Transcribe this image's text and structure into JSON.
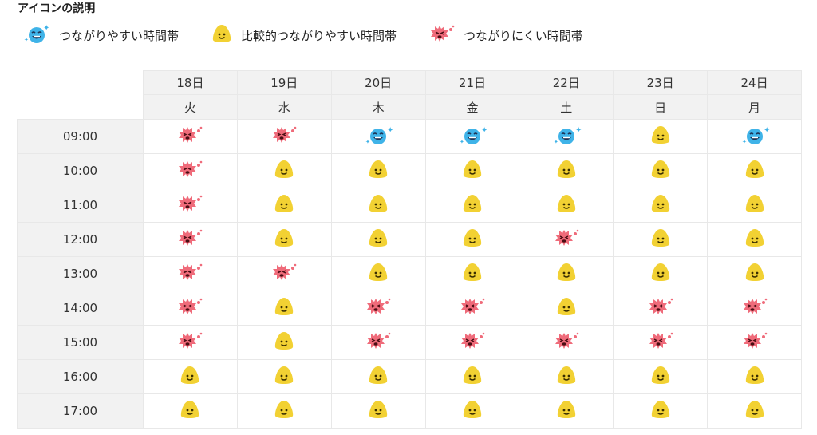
{
  "legend": {
    "title": "アイコンの説明",
    "items": [
      {
        "icon": "sparkle-happy-face-icon",
        "label": "つながりやすい時間帯"
      },
      {
        "icon": "smile-face-icon",
        "label": "比較的つながりやすい時間帯"
      },
      {
        "icon": "spiky-sad-face-icon",
        "label": "つながりにくい時間帯"
      }
    ]
  },
  "colors": {
    "good": "#3fb3e8",
    "normal": "#f2d133",
    "bad": "#ef6b7a"
  },
  "days": [
    {
      "date": "18日",
      "weekday": "火"
    },
    {
      "date": "19日",
      "weekday": "水"
    },
    {
      "date": "20日",
      "weekday": "木"
    },
    {
      "date": "21日",
      "weekday": "金"
    },
    {
      "date": "22日",
      "weekday": "土"
    },
    {
      "date": "23日",
      "weekday": "日"
    },
    {
      "date": "24日",
      "weekday": "月"
    }
  ],
  "slots": [
    {
      "time": "09:00",
      "status": [
        "bad",
        "bad",
        "good",
        "good",
        "good",
        "normal",
        "good"
      ]
    },
    {
      "time": "10:00",
      "status": [
        "bad",
        "normal",
        "normal",
        "normal",
        "normal",
        "normal",
        "normal"
      ]
    },
    {
      "time": "11:00",
      "status": [
        "bad",
        "normal",
        "normal",
        "normal",
        "normal",
        "normal",
        "normal"
      ]
    },
    {
      "time": "12:00",
      "status": [
        "bad",
        "normal",
        "normal",
        "normal",
        "bad",
        "normal",
        "normal"
      ]
    },
    {
      "time": "13:00",
      "status": [
        "bad",
        "bad",
        "normal",
        "normal",
        "normal",
        "normal",
        "normal"
      ]
    },
    {
      "time": "14:00",
      "status": [
        "bad",
        "normal",
        "bad",
        "bad",
        "normal",
        "bad",
        "bad"
      ]
    },
    {
      "time": "15:00",
      "status": [
        "bad",
        "normal",
        "bad",
        "bad",
        "bad",
        "bad",
        "bad"
      ]
    },
    {
      "time": "16:00",
      "status": [
        "normal",
        "normal",
        "normal",
        "normal",
        "normal",
        "normal",
        "normal"
      ]
    },
    {
      "time": "17:00",
      "status": [
        "normal",
        "normal",
        "normal",
        "normal",
        "normal",
        "normal",
        "normal"
      ]
    }
  ]
}
